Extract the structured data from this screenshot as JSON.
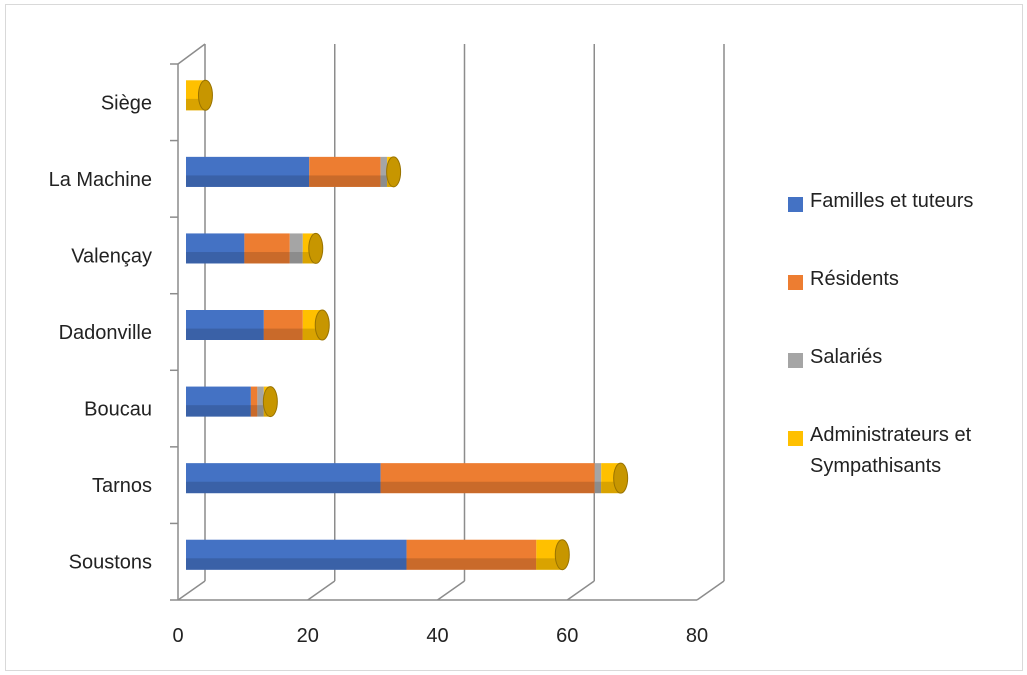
{
  "chart_data": {
    "type": "bar",
    "orientation": "horizontal",
    "stacked": true,
    "style": "3d-cylinder",
    "categories": [
      "Soustons",
      "Tarnos",
      "Boucau",
      "Dadonville",
      "Valençay",
      "La Machine",
      "Siège"
    ],
    "series": [
      {
        "name": "Familles et tuteurs",
        "color": "#4472C4",
        "values": [
          34,
          30,
          10,
          12,
          9,
          19,
          0
        ]
      },
      {
        "name": "Résidents",
        "color": "#ED7D31",
        "values": [
          20,
          33,
          1,
          6,
          7,
          11,
          0
        ]
      },
      {
        "name": "Salariés",
        "color": "#A5A5A5",
        "values": [
          0,
          1,
          1,
          0,
          2,
          1,
          0
        ]
      },
      {
        "name": "Administrateurs et Sympathisants",
        "color": "#FFC000",
        "values": [
          4,
          3,
          1,
          3,
          2,
          1,
          3
        ]
      }
    ],
    "xlim": [
      0,
      80
    ],
    "xticks": [
      "0",
      "20",
      "40",
      "60",
      "80"
    ],
    "grid": true,
    "legend_position": "right"
  }
}
